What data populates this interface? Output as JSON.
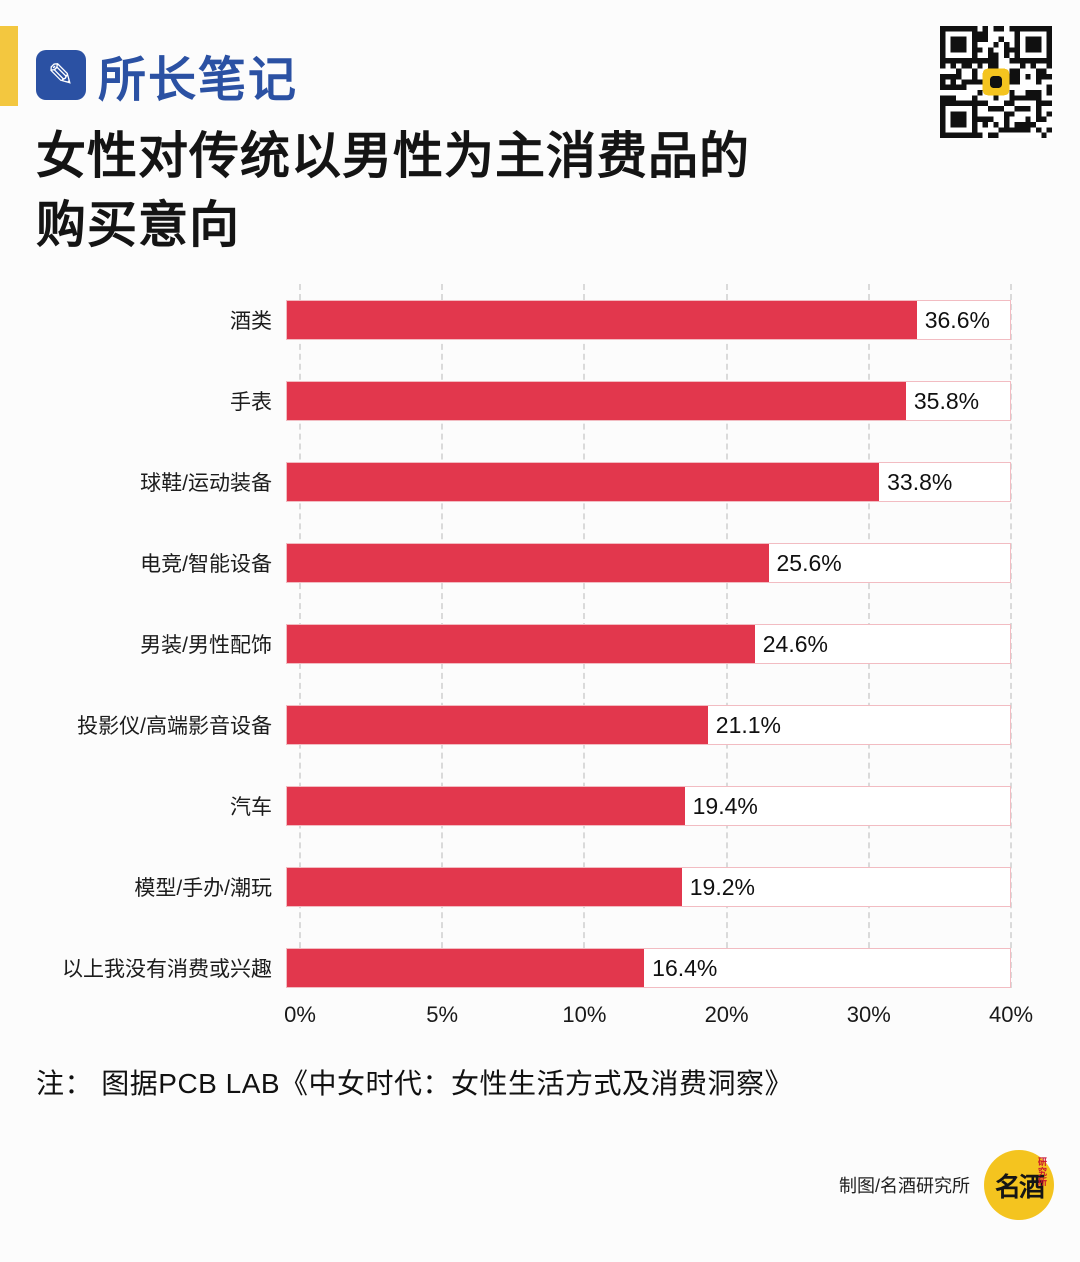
{
  "brand": {
    "name": "所长笔记"
  },
  "title": {
    "line1": "女性对传统以男性为主消费品的",
    "line2": "购买意向"
  },
  "chart_data": {
    "type": "bar",
    "orientation": "horizontal",
    "title": "女性对传统以男性为主消费品的购买意向",
    "categories": [
      "酒类",
      "手表",
      "球鞋/运动装备",
      "电竞/智能设备",
      "男装/男性配饰",
      "投影仪/高端影音设备",
      "汽车",
      "模型/手办/潮玩",
      "以上我没有消费或兴趣"
    ],
    "values": [
      36.6,
      35.8,
      33.8,
      25.6,
      24.6,
      21.1,
      19.4,
      19.2,
      16.4
    ],
    "value_labels": [
      "36.6%",
      "35.8%",
      "33.8%",
      "25.6%",
      "24.6%",
      "21.1%",
      "19.4%",
      "19.2%",
      "16.4%"
    ],
    "xticks": {
      "labels": [
        "0%",
        "5%",
        "10%",
        "20%",
        "30%",
        "40%"
      ],
      "values": [
        0,
        5,
        10,
        20,
        30,
        40
      ]
    },
    "xlim": [
      0,
      40
    ],
    "grid": true,
    "legend": false,
    "bar_color": "#e2374d",
    "box_border_color": "#f2bcc2",
    "bar_scale_hint": 0.935
  },
  "note": {
    "text": "注： 图据PCB LAB《中女时代：女性生活方式及消费洞察》"
  },
  "footer": {
    "credit": "制图/名酒研究所",
    "seal_main": "名酒",
    "seal_sub": "研究所"
  },
  "colors": {
    "accent_yellow": "#f3c73f",
    "brand_blue": "#2b51a3",
    "bar_red": "#e2374d",
    "box_border_pink": "#f2bcc2",
    "grid_gray": "#dadada",
    "background": "#fcfcfc"
  }
}
